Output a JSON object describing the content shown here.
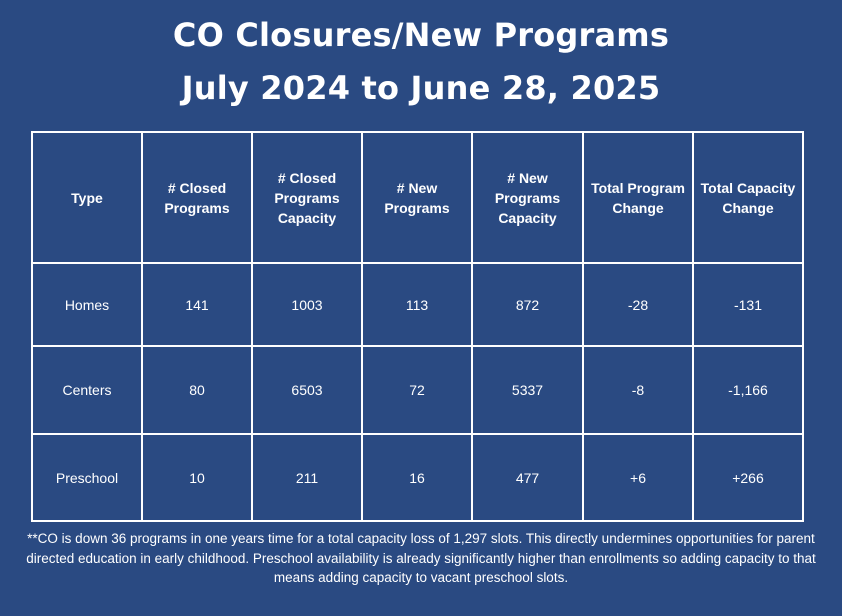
{
  "title": {
    "line1": "CO Closures/New Programs",
    "line2": "July 2024 to June 28, 2025"
  },
  "table": {
    "headers": [
      "Type",
      "# Closed Programs",
      "# Closed Programs Capacity",
      "# New Programs",
      "# New Programs Capacity",
      "Total Program Change",
      "Total Capacity Change"
    ],
    "rows": [
      [
        "Homes",
        "141",
        "1003",
        "113",
        "872",
        "-28",
        "-131"
      ],
      [
        "Centers",
        "80",
        "6503",
        "72",
        "5337",
        "-8",
        "-1,166"
      ],
      [
        "Preschool",
        "10",
        "211",
        "16",
        "477",
        "+6",
        "+266"
      ]
    ]
  },
  "footnote": "**CO is down 36 programs in one years time for a total capacity loss of 1,297 slots.  This directly undermines opportunities for parent directed education in early childhood.  Preschool availability is already significantly higher than enrollments so adding capacity to that means adding capacity to vacant preschool slots."
}
